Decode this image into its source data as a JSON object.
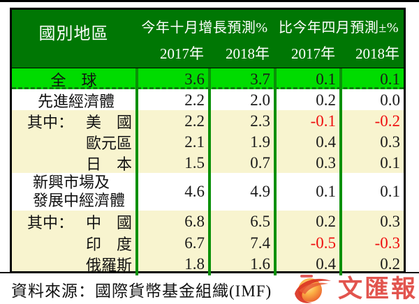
{
  "table": {
    "header": {
      "region_label": "國別地區",
      "group1": "今年十月增長預測%",
      "group2": "比今年四月預測±%",
      "years": [
        "2017年",
        "2018年",
        "2017年",
        "2018年"
      ]
    },
    "rows": [
      {
        "prefix": "",
        "name": "全　球",
        "name2": "",
        "align": "center",
        "bg": "green",
        "values": [
          "3.6",
          "3.7",
          "0.1",
          "0.1"
        ]
      },
      {
        "prefix": "",
        "name": "先進經濟體",
        "name2": "",
        "align": "left",
        "bg": "white",
        "values": [
          "2.2",
          "2.0",
          "0.2",
          "0.0"
        ]
      },
      {
        "prefix": "其中：",
        "name": "美　國",
        "name2": "",
        "align": "prefix",
        "bg": "cream",
        "values": [
          "2.2",
          "2.3",
          "-0.1",
          "-0.2"
        ]
      },
      {
        "prefix": "",
        "name": "歐元區",
        "name2": "",
        "align": "right",
        "bg": "cream",
        "values": [
          "2.1",
          "1.9",
          "0.4",
          "0.3"
        ]
      },
      {
        "prefix": "",
        "name": "日　本",
        "name2": "",
        "align": "right",
        "bg": "cream",
        "values": [
          "1.5",
          "0.7",
          "0.3",
          "0.1"
        ]
      },
      {
        "prefix": "",
        "name": "新興市場及",
        "name2": "發展中經濟體",
        "align": "left2",
        "bg": "white",
        "values": [
          "4.6",
          "4.9",
          "0.1",
          "0.1"
        ]
      },
      {
        "prefix": "其中：",
        "name": "中　國",
        "name2": "",
        "align": "prefix",
        "bg": "cream",
        "values": [
          "6.8",
          "6.5",
          "0.2",
          "0.3"
        ]
      },
      {
        "prefix": "",
        "name": "印　度",
        "name2": "",
        "align": "right",
        "bg": "cream",
        "values": [
          "6.7",
          "7.4",
          "-0.5",
          "-0.3"
        ]
      },
      {
        "prefix": "",
        "name": "俄羅斯",
        "name2": "",
        "align": "right",
        "bg": "cream",
        "values": [
          "1.8",
          "1.6",
          "0.4",
          "0.2"
        ]
      }
    ]
  },
  "footer": {
    "source": "資料來源：國際貨幣基金組織(IMF)"
  },
  "logo": {
    "name": "文匯報"
  },
  "colors": {
    "header_green": "#007704",
    "highlight_green": "#00dc00",
    "divider_green": "#0a9008",
    "cream": "#f8f4cf",
    "negative_red": "#ee0f0f",
    "logo_red": "#e2544e"
  },
  "chart_data": {
    "type": "table",
    "title": "",
    "column_groups": [
      "國別地區",
      "今年十月增長預測%",
      "比今年四月預測±%"
    ],
    "columns": [
      "國別地區",
      "今年十月增長預測% 2017年",
      "今年十月增長預測% 2018年",
      "比今年四月預測±% 2017年",
      "比今年四月預測±% 2018年"
    ],
    "rows": [
      [
        "全球",
        3.6,
        3.7,
        0.1,
        0.1
      ],
      [
        "先進經濟體",
        2.2,
        2.0,
        0.2,
        0.0
      ],
      [
        "其中：美國",
        2.2,
        2.3,
        -0.1,
        -0.2
      ],
      [
        "歐元區",
        2.1,
        1.9,
        0.4,
        0.3
      ],
      [
        "日本",
        1.5,
        0.7,
        0.3,
        0.1
      ],
      [
        "新興市場及發展中經濟體",
        4.6,
        4.9,
        0.1,
        0.1
      ],
      [
        "其中：中國",
        6.8,
        6.5,
        0.2,
        0.3
      ],
      [
        "印度",
        6.7,
        7.4,
        -0.5,
        -0.3
      ],
      [
        "俄羅斯",
        1.8,
        1.6,
        0.4,
        0.2
      ]
    ],
    "notes": "negative values shown in red; 全球 row highlighted bright green",
    "source": "資料來源：國際貨幣基金組織(IMF)"
  }
}
